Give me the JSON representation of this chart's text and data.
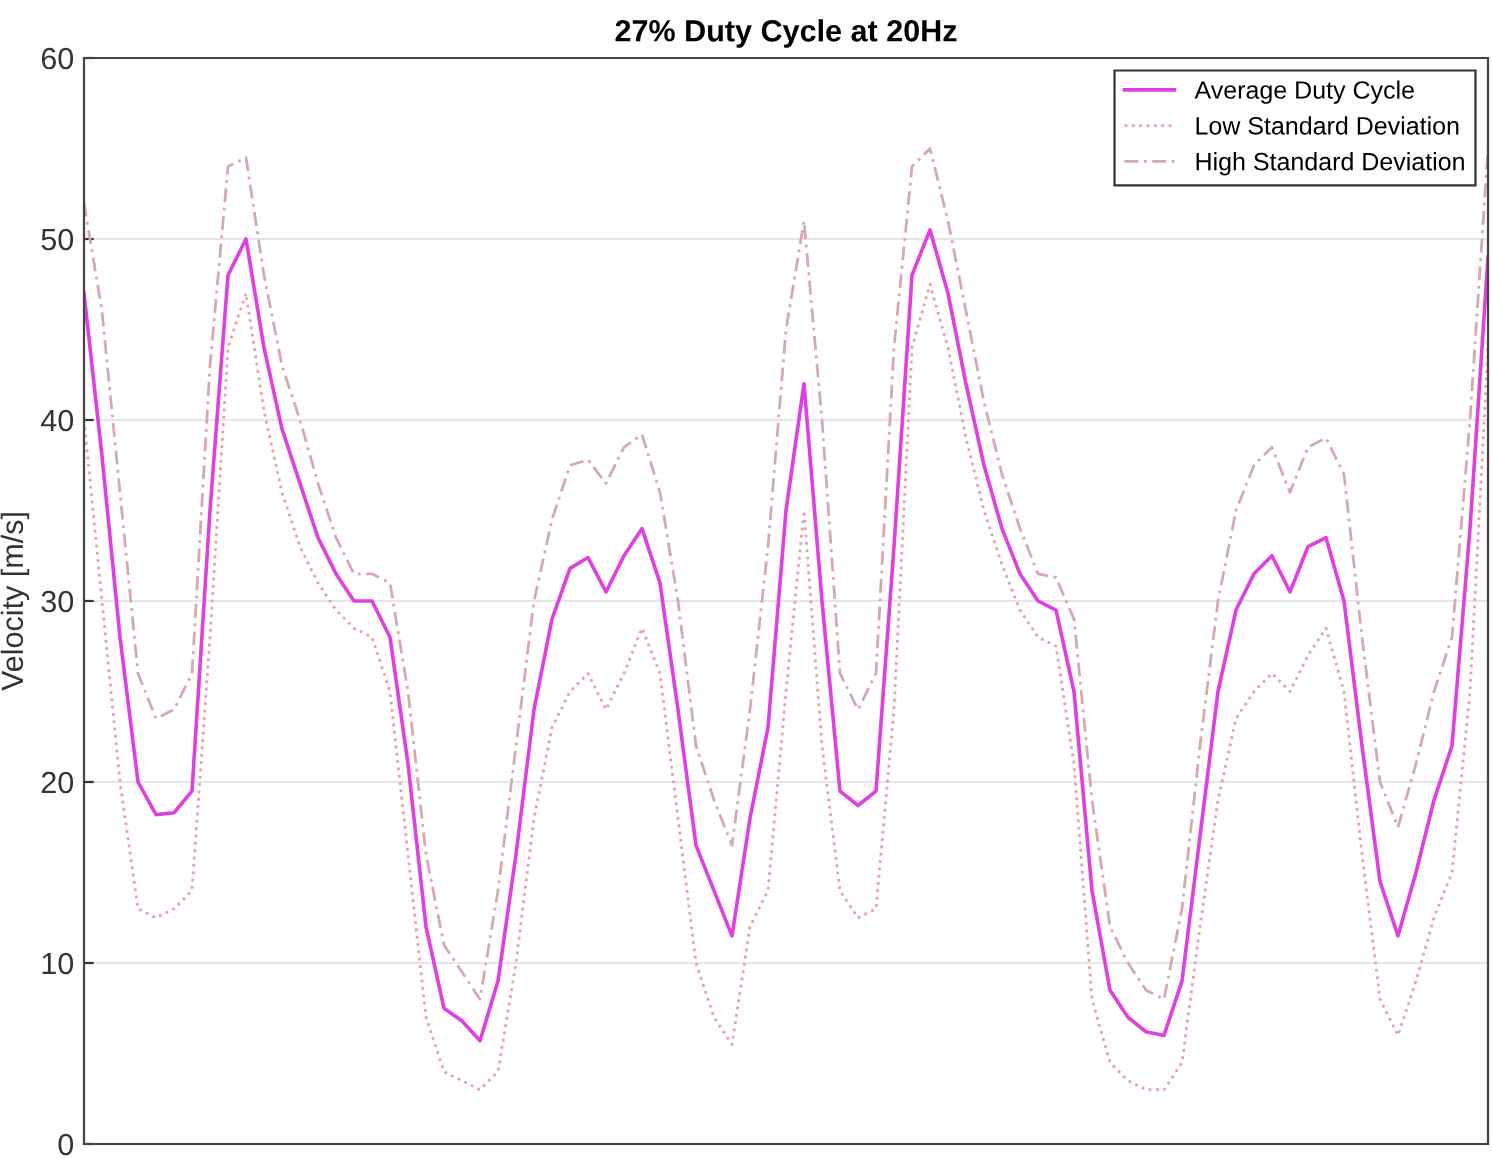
{
  "chart_data": {
    "type": "line",
    "title": "27% Duty Cycle at 20Hz",
    "ylabel": "Velocity [m/s]",
    "categories": [
      null,
      null,
      null,
      null,
      null,
      null,
      null,
      null,
      null,
      null,
      null,
      null,
      null,
      null,
      null,
      null,
      null,
      null,
      null,
      null,
      null,
      null,
      null,
      null,
      null,
      null,
      null,
      null,
      null,
      null,
      null,
      null,
      null,
      null,
      null,
      null,
      null,
      null,
      null,
      null,
      null,
      null,
      null,
      null,
      null,
      null,
      null,
      null,
      null,
      null,
      null,
      null,
      null,
      null,
      null,
      null,
      null,
      null,
      null,
      null,
      null,
      null,
      null,
      null,
      null,
      null,
      null,
      null,
      null,
      null,
      null,
      null,
      null,
      null,
      null,
      null,
      null,
      null,
      null
    ],
    "ylim": [
      0,
      60
    ],
    "yticks": [
      0,
      10,
      20,
      30,
      40,
      50,
      60
    ],
    "grid": "y",
    "legend": "top right",
    "series": [
      {
        "name": "Average Duty Cycle",
        "color": "#e040e0",
        "line_style": "solid",
        "values": [
          47,
          38,
          28,
          20,
          18.2,
          18.3,
          19.5,
          35,
          48,
          50,
          44,
          39.5,
          36.5,
          33.5,
          31.5,
          30,
          30,
          28,
          21,
          12,
          7.5,
          6.8,
          5.7,
          9,
          16,
          24,
          29,
          31.8,
          32.4,
          30.5,
          32.5,
          34,
          31,
          24,
          16.5,
          14,
          11.5,
          18,
          23,
          35,
          42,
          30,
          19.5,
          18.7,
          19.5,
          33,
          48,
          50.5,
          47,
          42,
          37.5,
          34,
          31.5,
          30,
          29.5,
          25,
          14,
          8.5,
          7,
          6.2,
          6,
          9,
          17,
          25,
          29.5,
          31.5,
          32.5,
          30.5,
          33,
          33.5,
          30,
          22,
          14.5,
          11.5,
          15,
          19,
          22,
          34,
          49
        ]
      },
      {
        "name": "Low Standard Deviation",
        "color": "#e8a0a8",
        "line_style": "dotted",
        "values": [
          40,
          30,
          20,
          13,
          12.5,
          13,
          14,
          28,
          44,
          47,
          40.5,
          36,
          33,
          31,
          29.5,
          28.5,
          28,
          25,
          16,
          7,
          4,
          3.5,
          3,
          4,
          10,
          18,
          23,
          25,
          26,
          24,
          26,
          28.5,
          26,
          18,
          10,
          7,
          5.5,
          12,
          14,
          25,
          35,
          22,
          14,
          12.5,
          13,
          24,
          44,
          47.5,
          44,
          39,
          35,
          32,
          29.5,
          28,
          27.5,
          21,
          8,
          4.5,
          3.5,
          3,
          3,
          4.5,
          12,
          19,
          23.5,
          25,
          26,
          25,
          27,
          28.5,
          25,
          16,
          8,
          6,
          9,
          12.5,
          15,
          25,
          44
        ]
      },
      {
        "name": "High Standard Deviation",
        "color": "#d8a8b0",
        "line_style": "dashed",
        "values": [
          52,
          46,
          36,
          26,
          23.5,
          24,
          26,
          43,
          54,
          54.5,
          48,
          43,
          40,
          36.5,
          33.5,
          31.5,
          31.5,
          31,
          25,
          16,
          11,
          9.5,
          8,
          14,
          22,
          30,
          34.5,
          37.5,
          37.8,
          36.5,
          38.5,
          39.2,
          36,
          30,
          22,
          19,
          16.5,
          24,
          33,
          45,
          51,
          40,
          26,
          24,
          26,
          44,
          54,
          55,
          51,
          46,
          41,
          37,
          34,
          31.5,
          31.3,
          29,
          19,
          12,
          10,
          8.5,
          8,
          13,
          22,
          30,
          35,
          37.5,
          38.5,
          36,
          38.5,
          39,
          37,
          28,
          20,
          17.5,
          21,
          25,
          28,
          40,
          55
        ]
      }
    ]
  }
}
